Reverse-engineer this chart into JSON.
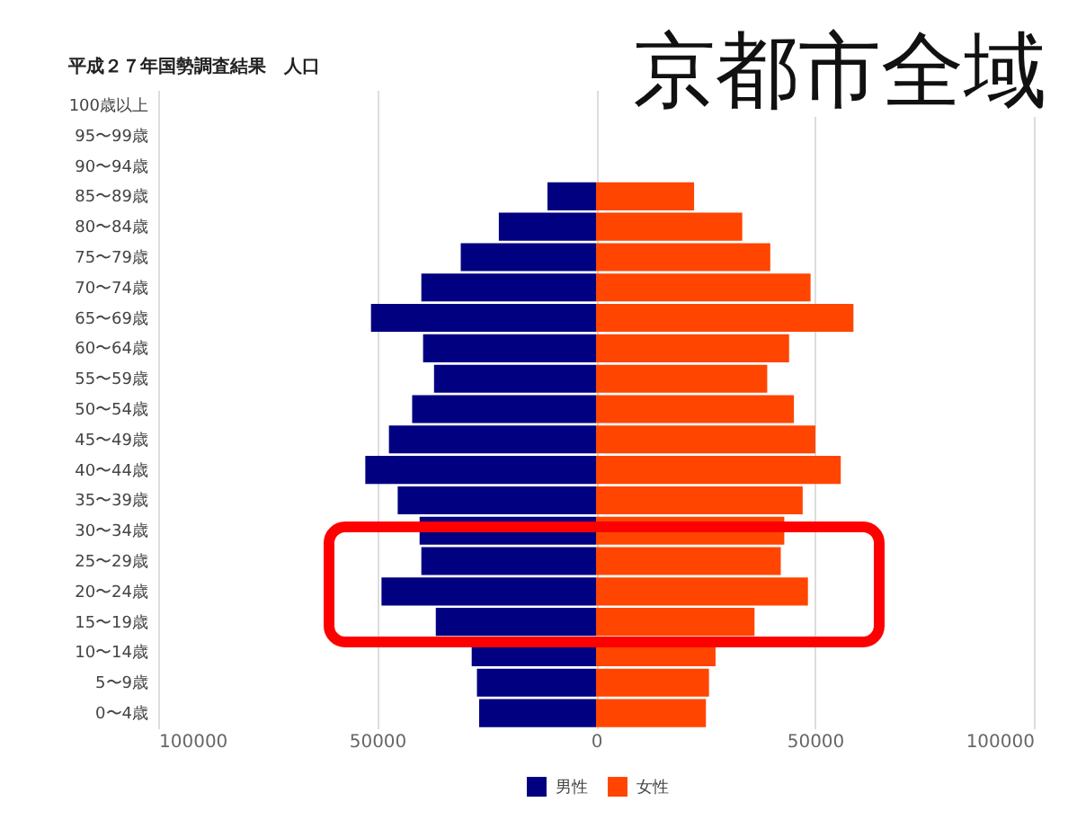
{
  "chart_data": {
    "type": "bar",
    "orientation": "horizontal",
    "title": "京都市全域",
    "subtitle": "平成２７年国勢調査結果　人口",
    "categories": [
      "100歳以上",
      "95〜99歳",
      "90〜94歳",
      "85〜89歳",
      "80〜84歳",
      "75〜79歳",
      "70〜74歳",
      "65〜69歳",
      "60〜64歳",
      "55〜59歳",
      "50〜54歳",
      "45〜49歳",
      "40〜44歳",
      "35〜39歳",
      "30〜34歳",
      "25〜29歳",
      "20〜24歳",
      "15〜19歳",
      "10〜14歳",
      "5〜9歳",
      "0〜4歳"
    ],
    "series": [
      {
        "name": "男性",
        "color": "#000080",
        "values": [
          0,
          0,
          0,
          -11100,
          -22200,
          -30900,
          -39900,
          -51400,
          -39500,
          -37000,
          -42000,
          -47300,
          -52700,
          -45300,
          -40300,
          -39900,
          -49000,
          -36600,
          -28400,
          -27200,
          -26700
        ]
      },
      {
        "name": "女性",
        "color": "#ff4500",
        "values": [
          0,
          0,
          0,
          22400,
          33400,
          39800,
          49000,
          58800,
          44100,
          39100,
          45200,
          50100,
          55900,
          47200,
          43000,
          42200,
          48400,
          36200,
          27300,
          25800,
          25100
        ]
      }
    ],
    "xlim": [
      -100000,
      100000
    ],
    "xticks": [
      {
        "value": -100000,
        "label": "100000"
      },
      {
        "value": -50000,
        "label": "50000"
      },
      0,
      50000,
      100000
    ],
    "grid": "x",
    "legend": "bottom",
    "stacked": true
  }
}
